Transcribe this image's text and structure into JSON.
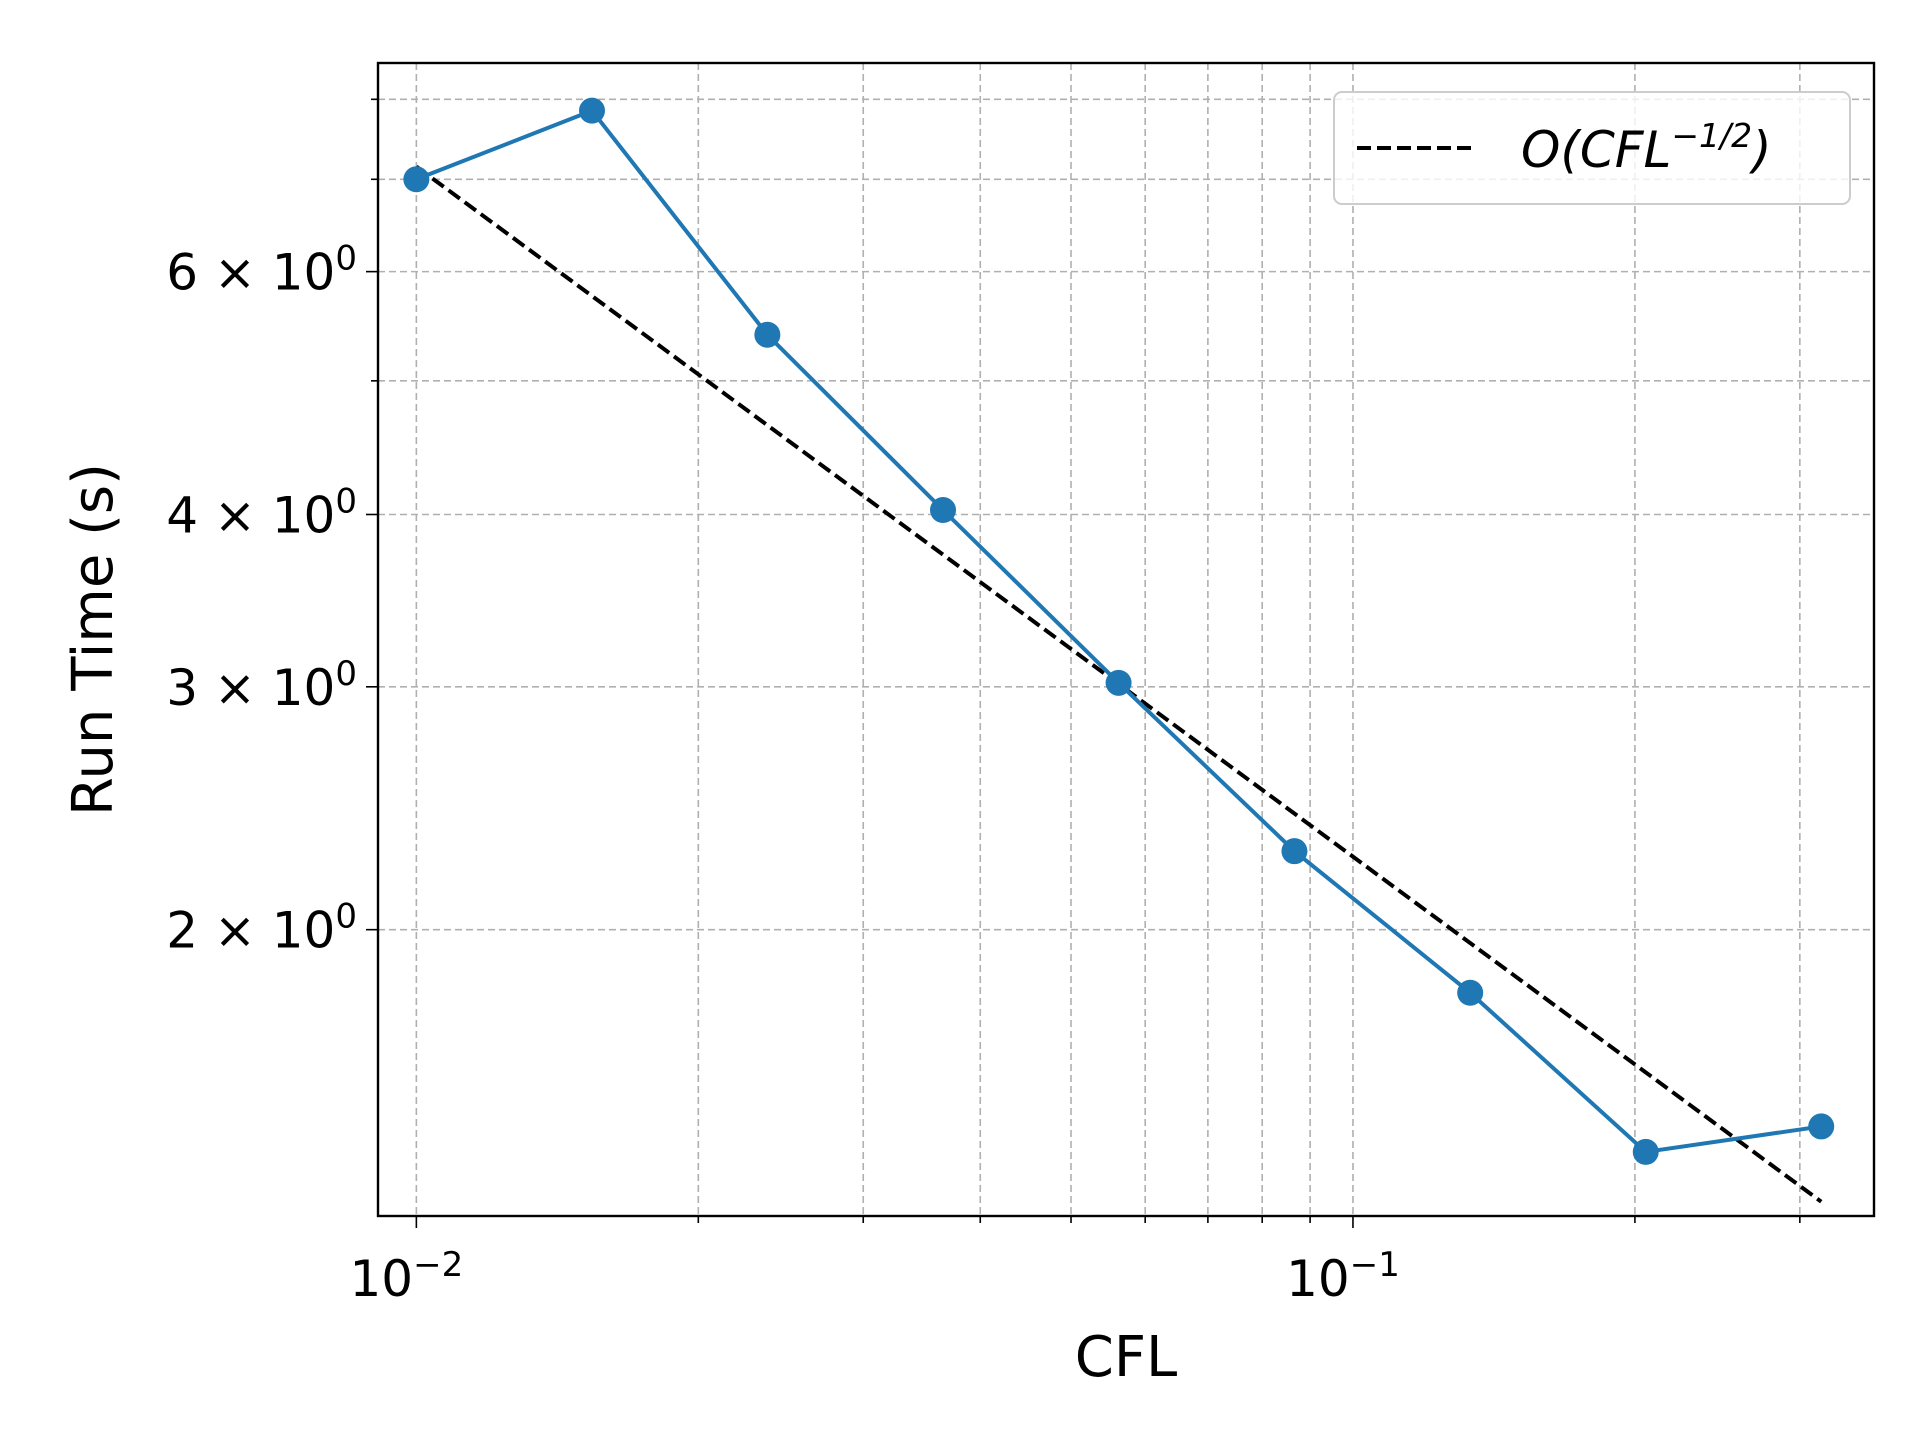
{
  "chart_data": {
    "type": "line",
    "xscale": "log",
    "yscale": "log",
    "xlabel": "CFL",
    "ylabel": "Run Time (s)",
    "xlim": [
      0.0091,
      0.36
    ],
    "ylim": [
      1.24,
      8.5
    ],
    "grid": true,
    "grid_minor": true,
    "legend_position": "top-right",
    "x_major_ticks": [
      {
        "value": 0.01,
        "label": "10",
        "exp": "−2"
      },
      {
        "value": 0.1,
        "label": "10",
        "exp": "−1"
      }
    ],
    "y_major_ticks": [
      {
        "value": 2,
        "label": "2 × 10",
        "exp": "0"
      },
      {
        "value": 3,
        "label": "3 × 10",
        "exp": "0"
      },
      {
        "value": 4,
        "label": "4 × 10",
        "exp": "0"
      },
      {
        "value": 6,
        "label": "6 × 10",
        "exp": "0"
      }
    ],
    "y_minor_ticks": [
      5,
      7,
      8
    ],
    "series": [
      {
        "style": "solid-markers",
        "color": "#1f77b4",
        "points": [
          {
            "x": 0.01,
            "y": 7.0
          },
          {
            "x": 0.0154,
            "y": 7.85
          },
          {
            "x": 0.0237,
            "y": 5.4
          },
          {
            "x": 0.0365,
            "y": 4.03
          },
          {
            "x": 0.0562,
            "y": 3.02
          },
          {
            "x": 0.0866,
            "y": 2.28
          },
          {
            "x": 0.1334,
            "y": 1.8
          },
          {
            "x": 0.2054,
            "y": 1.38
          },
          {
            "x": 0.3162,
            "y": 1.44
          }
        ]
      },
      {
        "name": "O(CFL",
        "name_exp": "−1/2",
        "name_close": ")",
        "style": "dashed",
        "color": "#000000",
        "points": [
          {
            "x": 0.01,
            "y": 7.15
          },
          {
            "x": 0.3162,
            "y": 1.27
          }
        ]
      }
    ]
  }
}
